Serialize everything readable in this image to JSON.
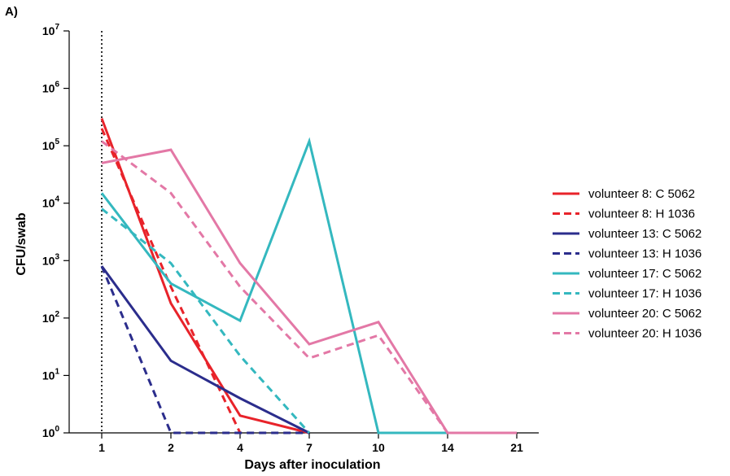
{
  "panel_label": "A)",
  "chart_data": {
    "type": "line",
    "title": "",
    "xlabel": "Days after inoculation",
    "ylabel": "CFU/swab",
    "x_scale": "categorical",
    "y_scale": "log10",
    "categories": [
      "1",
      "2",
      "4",
      "7",
      "10",
      "14",
      "21"
    ],
    "ylim": [
      1,
      10000000
    ],
    "y_ticks": [
      {
        "base": "10",
        "exp": "0"
      },
      {
        "base": "10",
        "exp": "1"
      },
      {
        "base": "10",
        "exp": "2"
      },
      {
        "base": "10",
        "exp": "3"
      },
      {
        "base": "10",
        "exp": "4"
      },
      {
        "base": "10",
        "exp": "5"
      },
      {
        "base": "10",
        "exp": "6"
      },
      {
        "base": "10",
        "exp": "7"
      }
    ],
    "reference_line": {
      "x": "1",
      "style": "dotted",
      "color": "#000000"
    },
    "grid": false,
    "legend_position": "right",
    "series": [
      {
        "name": "volunteer 8: C 5062",
        "color": "#e8232a",
        "dash": "solid",
        "values": [
          300000,
          180,
          2,
          1,
          null,
          null,
          null
        ]
      },
      {
        "name": "volunteer 8: H 1036",
        "color": "#e8232a",
        "dash": "dashed",
        "values": [
          200000,
          350,
          1,
          null,
          null,
          null,
          null
        ]
      },
      {
        "name": "volunteer 13: C 5062",
        "color": "#2b2d8c",
        "dash": "solid",
        "values": [
          800,
          18,
          4,
          1,
          null,
          null,
          null
        ]
      },
      {
        "name": "volunteer 13: H 1036",
        "color": "#2b2d8c",
        "dash": "dashed",
        "values": [
          800,
          1,
          1,
          1,
          null,
          null,
          null
        ]
      },
      {
        "name": "volunteer 17: C 5062",
        "color": "#34b8bf",
        "dash": "solid",
        "values": [
          15000,
          400,
          90,
          120000,
          1,
          1,
          null
        ]
      },
      {
        "name": "volunteer 17: H 1036",
        "color": "#34b8bf",
        "dash": "dashed",
        "values": [
          8000,
          900,
          22,
          1,
          null,
          null,
          null
        ]
      },
      {
        "name": "volunteer 20: C 5062",
        "color": "#e378a6",
        "dash": "solid",
        "values": [
          50000,
          85000,
          900,
          35,
          85,
          1,
          1
        ]
      },
      {
        "name": "volunteer 20: H 1036",
        "color": "#e378a6",
        "dash": "dashed",
        "values": [
          120000,
          15000,
          350,
          20,
          50,
          1,
          1
        ]
      }
    ]
  }
}
